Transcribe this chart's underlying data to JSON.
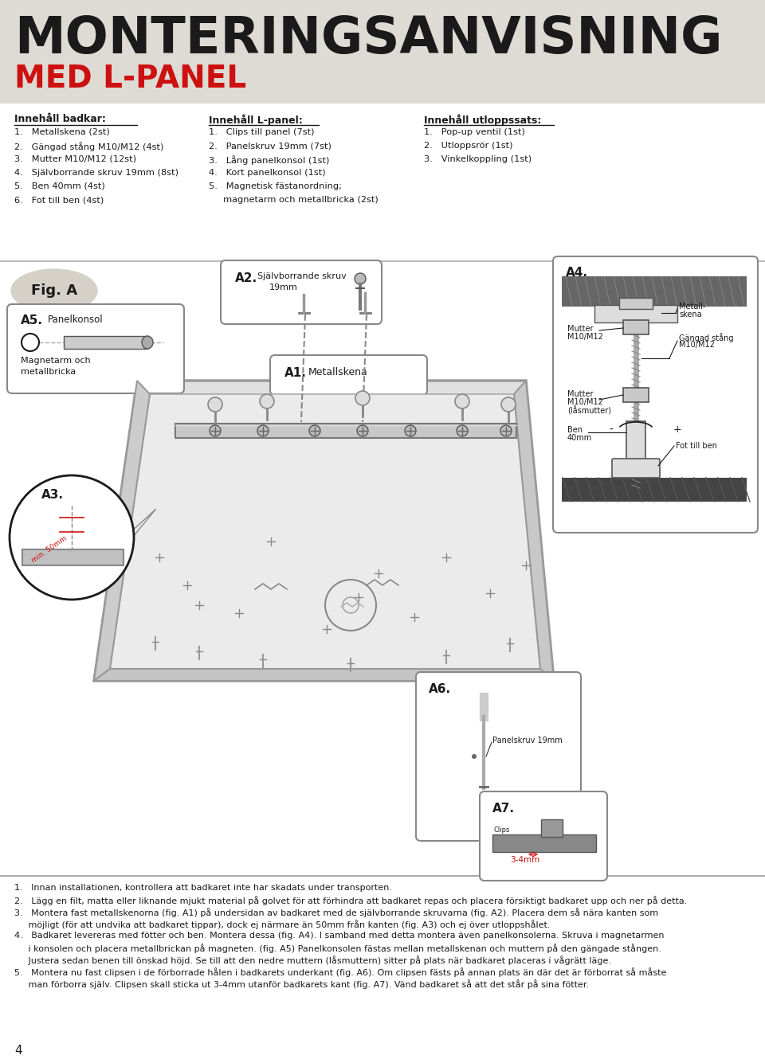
{
  "bg_color": "#dedad4",
  "white": "#ffffff",
  "black": "#1a1a1a",
  "red": "#cc1111",
  "title": "MONTERINGSANVISNING",
  "subtitle": "MED L-PANEL",
  "innehall_badkar_title": "Innehåll badkar:",
  "innehall_badkar_items": [
    "1.   Metallskena (2st)",
    "2.   Gängad stång M10/M12 (4st)",
    "3.   Mutter M10/M12 (12st)",
    "4.   Självborrande skruv 19mm (8st)",
    "5.   Ben 40mm (4st)",
    "6.   Fot till ben (4st)"
  ],
  "innehall_lpanel_title": "Innehåll L-panel:",
  "innehall_lpanel_items": [
    "1.   Clips till panel (7st)",
    "2.   Panelskruv 19mm (7st)",
    "3.   Lång panelkonsol (1st)",
    "4.   Kort panelkonsol (1st)",
    "5.   Magnetisk fästanordning;",
    "     magnetarm och metallbricka (2st)"
  ],
  "innehall_utloppssats_title": "Innehåll utloppssats:",
  "innehall_utloppssats_items": [
    "1.   Pop-up ventil (1st)",
    "2.   Utloppsrör (1st)",
    "3.   Vinkelkoppling (1st)"
  ],
  "footer_lines": [
    "1.   Innan installationen, kontrollera att badkaret inte har skadats under transporten.",
    "2.   Lägg en filt, matta eller liknande mjukt material på golvet för att förhindra att badkaret repas och placera försiktigt badkaret upp och ner på detta.",
    "3.   Montera fast metallskenorna (fig. A1) på undersidan av badkaret med de självborrande skruvarna (fig. A2). Placera dem så nära kanten som",
    "     möjligt (för att undvika att badkaret tippar), dock ej närmare än 50mm från kanten (fig. A3) och ej över utloppshålet.",
    "4.   Badkaret levereras med fötter och ben. Montera dessa (fig. A4). I samband med detta montera även panelkonsolerna. Skruva i magnetarmen",
    "     i konsolen och placera metallbrickan på magneten. (fig. A5) Panelkonsolen fästas mellan metallskenan och muttern på den gängade stången.",
    "     Justera sedan benen till önskad höjd. Se till att den nedre muttern (låsmuttern) sitter på plats när badkaret placeras i vågrätt läge.",
    "5.   Montera nu fast clipsen i de förborrade hålen i badkarets underkant (fig. A6). Om clipsen fästs på annan plats än där det är förborrat så måste",
    "     man förborra själv. Clipsen skall sticka ut 3-4mm utanför badkarets kant (fig. A7). Vänd badkaret så att det står på sina fötter."
  ],
  "page_number": "4"
}
